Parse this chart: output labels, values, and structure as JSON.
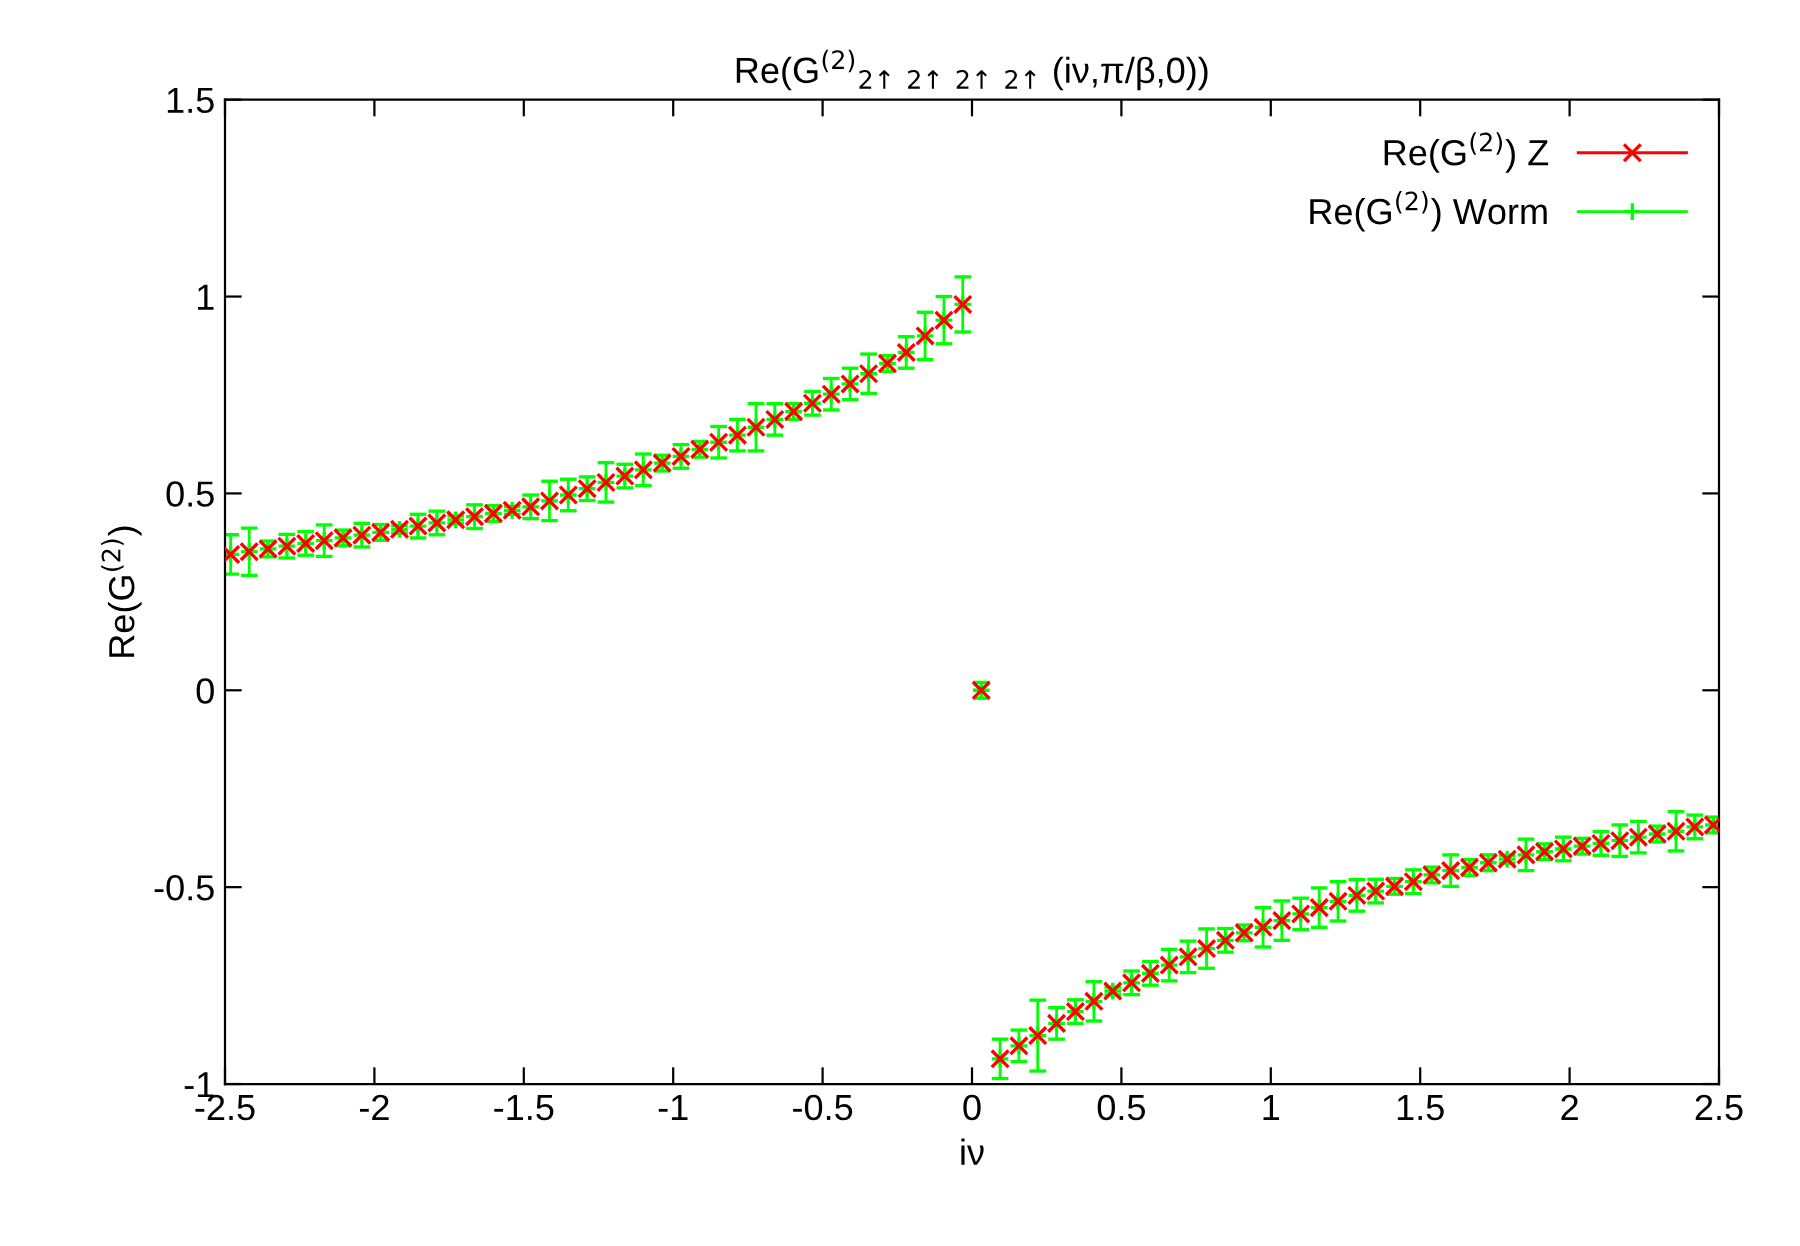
{
  "chart_data": {
    "type": "scatter",
    "title": "Re(G$^{(2)}$$_{2↑}$ $_{2↑}$ $_{2↑}$ $_{2↑}$ (iν,π/β,0))",
    "xlabel": "iν",
    "ylabel": "Re(G$^{(2)}$)",
    "x": [
      -2.481,
      -2.419,
      -2.356,
      -2.293,
      -2.23,
      -2.168,
      -2.105,
      -2.042,
      -1.979,
      -1.916,
      -1.854,
      -1.791,
      -1.728,
      -1.665,
      -1.602,
      -1.539,
      -1.477,
      -1.414,
      -1.351,
      -1.288,
      -1.225,
      -1.162,
      -1.1,
      -1.037,
      -0.974,
      -0.911,
      -0.848,
      -0.785,
      -0.723,
      -0.66,
      -0.597,
      -0.534,
      -0.471,
      -0.408,
      -0.346,
      -0.283,
      -0.22,
      -0.157,
      -0.094,
      -0.031,
      0.031,
      0.094,
      0.157,
      0.22,
      0.283,
      0.346,
      0.408,
      0.471,
      0.534,
      0.597,
      0.66,
      0.723,
      0.785,
      0.848,
      0.911,
      0.974,
      1.037,
      1.1,
      1.162,
      1.225,
      1.288,
      1.351,
      1.414,
      1.477,
      1.539,
      1.602,
      1.665,
      1.728,
      1.791,
      1.854,
      1.916,
      1.979,
      2.042,
      2.105,
      2.168,
      2.23,
      2.293,
      2.356,
      2.419,
      2.481
    ],
    "series": [
      {
        "name": "Re(G$^{(2)}$) Z",
        "color": "#ff0000",
        "marker": "cross",
        "values": [
          0.345,
          0.352,
          0.359,
          0.366,
          0.373,
          0.38,
          0.387,
          0.394,
          0.401,
          0.409,
          0.417,
          0.425,
          0.433,
          0.441,
          0.449,
          0.457,
          0.466,
          0.481,
          0.496,
          0.512,
          0.528,
          0.544,
          0.56,
          0.577,
          0.594,
          0.612,
          0.63,
          0.648,
          0.668,
          0.688,
          0.708,
          0.729,
          0.752,
          0.778,
          0.804,
          0.83,
          0.858,
          0.9,
          0.94,
          0.98,
          0,
          -0.936,
          -0.903,
          -0.877,
          -0.846,
          -0.816,
          -0.79,
          -0.764,
          -0.743,
          -0.719,
          -0.698,
          -0.677,
          -0.656,
          -0.635,
          -0.616,
          -0.602,
          -0.585,
          -0.568,
          -0.552,
          -0.536,
          -0.521,
          -0.51,
          -0.498,
          -0.486,
          -0.469,
          -0.458,
          -0.45,
          -0.438,
          -0.429,
          -0.418,
          -0.41,
          -0.403,
          -0.396,
          -0.389,
          -0.382,
          -0.373,
          -0.365,
          -0.358,
          -0.347,
          -0.342
        ]
      },
      {
        "name": "Re(G$^{(2)}$) Worm",
        "color": "#00ff00",
        "marker": "plus",
        "values": [
          0.345,
          0.352,
          0.359,
          0.366,
          0.373,
          0.38,
          0.387,
          0.394,
          0.401,
          0.409,
          0.417,
          0.425,
          0.433,
          0.441,
          0.449,
          0.457,
          0.466,
          0.481,
          0.496,
          0.512,
          0.528,
          0.544,
          0.56,
          0.577,
          0.594,
          0.612,
          0.63,
          0.648,
          0.668,
          0.688,
          0.708,
          0.729,
          0.752,
          0.778,
          0.804,
          0.83,
          0.858,
          0.9,
          0.94,
          0.98,
          0,
          -0.936,
          -0.903,
          -0.877,
          -0.846,
          -0.816,
          -0.79,
          -0.764,
          -0.743,
          -0.719,
          -0.698,
          -0.677,
          -0.656,
          -0.635,
          -0.616,
          -0.602,
          -0.585,
          -0.568,
          -0.552,
          -0.536,
          -0.521,
          -0.51,
          -0.498,
          -0.486,
          -0.469,
          -0.458,
          -0.45,
          -0.438,
          -0.429,
          -0.418,
          -0.41,
          -0.403,
          -0.396,
          -0.389,
          -0.382,
          -0.373,
          -0.365,
          -0.358,
          -0.347,
          -0.342
        ],
        "errors": [
          0.05,
          0.06,
          0.02,
          0.03,
          0.03,
          0.04,
          0.02,
          0.03,
          0.02,
          0.01,
          0.03,
          0.03,
          0.01,
          0.03,
          0.02,
          0.01,
          0.03,
          0.05,
          0.04,
          0.03,
          0.05,
          0.03,
          0.04,
          0.02,
          0.03,
          0.02,
          0.04,
          0.04,
          0.06,
          0.04,
          0.02,
          0.03,
          0.04,
          0.04,
          0.05,
          0.02,
          0.04,
          0.06,
          0.06,
          0.07,
          0.02,
          0.05,
          0.04,
          0.09,
          0.04,
          0.03,
          0.05,
          0.01,
          0.03,
          0.03,
          0.04,
          0.04,
          0.05,
          0.03,
          0.02,
          0.05,
          0.05,
          0.04,
          0.05,
          0.05,
          0.04,
          0.03,
          0.02,
          0.03,
          0.02,
          0.04,
          0.02,
          0.02,
          0.01,
          0.04,
          0.02,
          0.03,
          0.02,
          0.03,
          0.04,
          0.04,
          0.02,
          0.05,
          0.03,
          0.02
        ]
      }
    ],
    "xlim": [
      -2.5,
      2.5
    ],
    "xticks": [
      -2.5,
      -2,
      -1.5,
      -1,
      -0.5,
      0,
      0.5,
      1,
      1.5,
      2,
      2.5
    ],
    "ylim": [
      -1,
      1.5
    ],
    "yticks": [
      -1,
      -0.5,
      0,
      0.5,
      1,
      1.5
    ],
    "legend": "top right",
    "grid": false
  }
}
